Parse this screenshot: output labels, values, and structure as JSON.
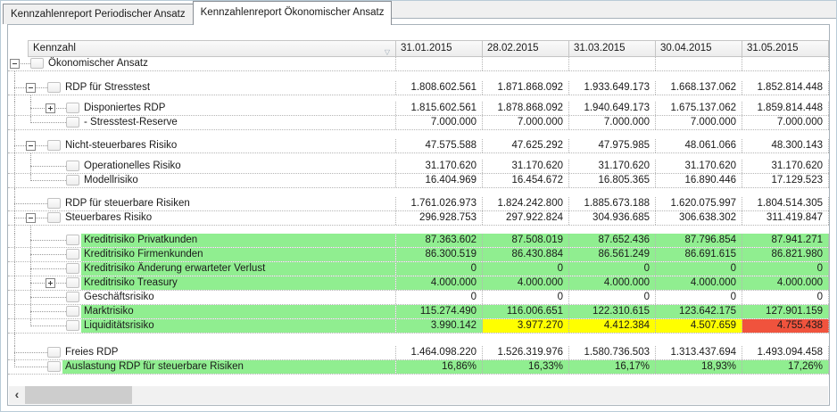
{
  "tabs": [
    {
      "label": "Kennzahlenreport Periodischer Ansatz",
      "active": false
    },
    {
      "label": "Kennzahlenreport Ökonomischer Ansatz",
      "active": true
    }
  ],
  "colors": {
    "green": "#90EE90",
    "yellow": "#FFFF00",
    "red": "#F0533D"
  },
  "table": {
    "key_header": "Kennzahl",
    "sort_icon": "▽",
    "dates": [
      "31.01.2015",
      "28.02.2015",
      "31.03.2015",
      "30.04.2015",
      "31.05.2015"
    ],
    "rows": [
      {
        "label": "Ökonomischer Ansatz",
        "level": 0,
        "expand": "minus",
        "values": [
          "",
          "",
          "",
          "",
          ""
        ]
      },
      {
        "label": "RDP für Stresstest",
        "level": 1,
        "expand": "minus",
        "gap_before": 11,
        "gap_spines": [
          "root"
        ],
        "spine_root": "full",
        "values": [
          "1.808.602.561",
          "1.871.868.092",
          "1.933.649.173",
          "1.668.137.062",
          "1.852.814.448"
        ]
      },
      {
        "label": "Disponiertes RDP",
        "level": 2,
        "expand": "plus",
        "gap_before": 7,
        "gap_spines": [
          "root",
          "l1"
        ],
        "spine_root": "full",
        "spine_l1": "full",
        "values": [
          "1.815.602.561",
          "1.878.868.092",
          "1.940.649.173",
          "1.675.137.062",
          "1.859.814.448"
        ]
      },
      {
        "label": "- Stresstest-Reserve",
        "level": 2,
        "spine_root": "full",
        "spine_l1": "half",
        "values": [
          "7.000.000",
          "7.000.000",
          "7.000.000",
          "7.000.000",
          "7.000.000"
        ]
      },
      {
        "label": "Nicht-steuerbares Risiko",
        "level": 1,
        "expand": "minus",
        "gap_before": 10,
        "gap_spines": [
          "root"
        ],
        "spine_root": "full",
        "values": [
          "47.575.588",
          "47.625.292",
          "47.975.985",
          "48.061.066",
          "48.300.143"
        ]
      },
      {
        "label": "Operationelles Risiko",
        "level": 2,
        "gap_before": 7,
        "gap_spines": [
          "root",
          "l1"
        ],
        "spine_root": "full",
        "spine_l1": "full",
        "values": [
          "31.170.620",
          "31.170.620",
          "31.170.620",
          "31.170.620",
          "31.170.620"
        ]
      },
      {
        "label": "Modellrisiko",
        "level": 2,
        "spine_root": "full",
        "spine_l1": "half",
        "values": [
          "16.404.969",
          "16.454.672",
          "16.805.365",
          "16.890.446",
          "17.129.523"
        ]
      },
      {
        "label": "RDP für steuerbare Risiken",
        "level": 1,
        "gap_before": 10,
        "gap_spines": [
          "root"
        ],
        "spine_root": "full",
        "values": [
          "1.761.026.973",
          "1.824.242.800",
          "1.885.673.188",
          "1.620.075.997",
          "1.804.514.305"
        ]
      },
      {
        "label": "Steuerbares Risiko",
        "level": 1,
        "expand": "minus",
        "spine_root": "full",
        "values": [
          "296.928.753",
          "297.922.824",
          "304.936.685",
          "306.638.302",
          "311.419.847"
        ]
      },
      {
        "label": "Kreditrisiko Privatkunden",
        "level": 2,
        "gap_before": 9,
        "gap_spines": [
          "root",
          "l1"
        ],
        "spine_root": "full",
        "spine_l1": "full",
        "label_bg": "green",
        "value_bgs": [
          "green",
          "green",
          "green",
          "green",
          "green"
        ],
        "values": [
          "87.363.602",
          "87.508.019",
          "87.652.436",
          "87.796.854",
          "87.941.271"
        ]
      },
      {
        "label": "Kreditrisiko Firmenkunden",
        "level": 2,
        "spine_root": "full",
        "spine_l1": "full",
        "label_bg": "green",
        "value_bgs": [
          "green",
          "green",
          "green",
          "green",
          "green"
        ],
        "values": [
          "86.300.519",
          "86.430.884",
          "86.561.249",
          "86.691.615",
          "86.821.980"
        ]
      },
      {
        "label": "Kreditrisiko Änderung erwarteter Verlust",
        "level": 2,
        "spine_root": "full",
        "spine_l1": "full",
        "label_bg": "green",
        "value_bgs": [
          "green",
          "green",
          "green",
          "green",
          "green"
        ],
        "values": [
          "0",
          "0",
          "0",
          "0",
          "0"
        ]
      },
      {
        "label": "Kreditrisiko Treasury",
        "level": 2,
        "expand": "plus",
        "spine_root": "full",
        "spine_l1": "full",
        "label_bg": "green",
        "value_bgs": [
          "green",
          "green",
          "green",
          "green",
          "green"
        ],
        "values": [
          "4.000.000",
          "4.000.000",
          "4.000.000",
          "4.000.000",
          "4.000.000"
        ]
      },
      {
        "label": "Geschäftsrisiko",
        "level": 2,
        "spine_root": "full",
        "spine_l1": "full",
        "values": [
          "0",
          "0",
          "0",
          "0",
          "0"
        ]
      },
      {
        "label": "Marktrisiko",
        "level": 2,
        "spine_root": "full",
        "spine_l1": "full",
        "label_bg": "green",
        "value_bgs": [
          "green",
          "green",
          "green",
          "green",
          "green"
        ],
        "values": [
          "115.274.490",
          "116.006.651",
          "122.310.615",
          "123.642.175",
          "127.901.159"
        ]
      },
      {
        "label": "Liquiditätsrisiko",
        "level": 2,
        "spine_root": "full",
        "spine_l1": "half",
        "label_bg": "green",
        "value_bgs": [
          "green",
          "yellow",
          "yellow",
          "yellow",
          "red"
        ],
        "values": [
          "3.990.142",
          "3.977.270",
          "4.412.384",
          "4.507.659",
          "4.755.438"
        ]
      },
      {
        "label": "Freies RDP",
        "level": 1,
        "gap_before": 14,
        "gap_spines": [
          "root"
        ],
        "spine_root": "full",
        "values": [
          "1.464.098.220",
          "1.526.319.976",
          "1.580.736.503",
          "1.313.437.694",
          "1.493.094.458"
        ]
      },
      {
        "label": "Auslastung RDP für steuerbare Risiken",
        "level": 1,
        "spine_root": "half",
        "label_bg": "green",
        "value_bgs": [
          "green",
          "green",
          "green",
          "green",
          "green"
        ],
        "values": [
          "16,86%",
          "16,33%",
          "16,17%",
          "18,93%",
          "17,26%"
        ]
      }
    ]
  },
  "scrollbar": {
    "left_arrow": "‹"
  }
}
